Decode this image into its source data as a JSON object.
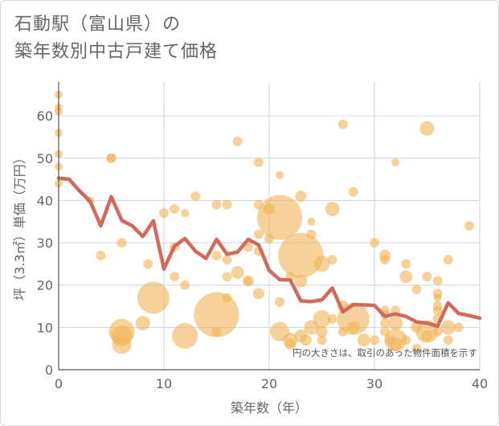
{
  "title": {
    "line1": "石動駅（富山県）の",
    "line2": "築年数別中古戸建て価格"
  },
  "chart_data": {
    "type": "scatter+line",
    "xlabel": "築年数（年）",
    "ylabel": "坪（3.3㎡）単価（万円）",
    "xlim": [
      0,
      40
    ],
    "ylim": [
      0,
      68
    ],
    "xticks": [
      0,
      10,
      20,
      30,
      40
    ],
    "yticks": [
      0,
      10,
      20,
      30,
      40,
      50,
      60
    ],
    "annotation": "円の大きさは、取引のあった物件面積を示す",
    "colors": {
      "bubble": "#f0b55a",
      "line": "#d2695a",
      "grid": "#c9d6e3",
      "plot_bg": "#ffffff"
    },
    "bubbles": [
      {
        "x": 0,
        "y": 65,
        "s": 5
      },
      {
        "x": 0,
        "y": 62,
        "s": 5
      },
      {
        "x": 0,
        "y": 61,
        "s": 5
      },
      {
        "x": 0,
        "y": 56,
        "s": 5
      },
      {
        "x": 0,
        "y": 51,
        "s": 5
      },
      {
        "x": 0,
        "y": 48,
        "s": 5
      },
      {
        "x": 0,
        "y": 44,
        "s": 5
      },
      {
        "x": 3,
        "y": 40,
        "s": 5
      },
      {
        "x": 4,
        "y": 27,
        "s": 6
      },
      {
        "x": 5,
        "y": 50,
        "s": 6
      },
      {
        "x": 5,
        "y": 50,
        "s": 6
      },
      {
        "x": 6,
        "y": 30,
        "s": 6
      },
      {
        "x": 6,
        "y": 9,
        "s": 16
      },
      {
        "x": 6,
        "y": 8,
        "s": 13
      },
      {
        "x": 6,
        "y": 6,
        "s": 12
      },
      {
        "x": 8,
        "y": 11,
        "s": 9
      },
      {
        "x": 8.5,
        "y": 25,
        "s": 6
      },
      {
        "x": 9,
        "y": 17,
        "s": 20
      },
      {
        "x": 10,
        "y": 37,
        "s": 6
      },
      {
        "x": 11,
        "y": 38,
        "s": 6
      },
      {
        "x": 11,
        "y": 22,
        "s": 6
      },
      {
        "x": 11,
        "y": 29,
        "s": 6
      },
      {
        "x": 12,
        "y": 37,
        "s": 5
      },
      {
        "x": 12,
        "y": 20,
        "s": 6
      },
      {
        "x": 12,
        "y": 8,
        "s": 16
      },
      {
        "x": 13,
        "y": 41,
        "s": 6
      },
      {
        "x": 15,
        "y": 39,
        "s": 6
      },
      {
        "x": 15,
        "y": 27,
        "s": 6
      },
      {
        "x": 15,
        "y": 9,
        "s": 6
      },
      {
        "x": 15,
        "y": 13,
        "s": 28
      },
      {
        "x": 16,
        "y": 39,
        "s": 6
      },
      {
        "x": 16,
        "y": 26,
        "s": 6
      },
      {
        "x": 16,
        "y": 17,
        "s": 6
      },
      {
        "x": 16,
        "y": 22,
        "s": 6
      },
      {
        "x": 17,
        "y": 54,
        "s": 6
      },
      {
        "x": 17,
        "y": 23,
        "s": 8
      },
      {
        "x": 18,
        "y": 21,
        "s": 7
      },
      {
        "x": 18,
        "y": 29,
        "s": 6
      },
      {
        "x": 18,
        "y": 21,
        "s": 5
      },
      {
        "x": 19,
        "y": 49,
        "s": 6
      },
      {
        "x": 19,
        "y": 39,
        "s": 6
      },
      {
        "x": 19,
        "y": 32,
        "s": 6
      },
      {
        "x": 19,
        "y": 28,
        "s": 6
      },
      {
        "x": 19,
        "y": 18,
        "s": 7
      },
      {
        "x": 20,
        "y": 38,
        "s": 7
      },
      {
        "x": 20,
        "y": 31,
        "s": 6
      },
      {
        "x": 21,
        "y": 46,
        "s": 5
      },
      {
        "x": 21,
        "y": 36,
        "s": 28
      },
      {
        "x": 21,
        "y": 16,
        "s": 6
      },
      {
        "x": 21,
        "y": 9,
        "s": 12
      },
      {
        "x": 22,
        "y": 22,
        "s": 6
      },
      {
        "x": 22,
        "y": 7,
        "s": 9
      },
      {
        "x": 22,
        "y": 6,
        "s": 7
      },
      {
        "x": 23,
        "y": 41,
        "s": 7
      },
      {
        "x": 23,
        "y": 27,
        "s": 28
      },
      {
        "x": 23,
        "y": 21,
        "s": 8
      },
      {
        "x": 23,
        "y": 8,
        "s": 8
      },
      {
        "x": 23.5,
        "y": 7,
        "s": 7
      },
      {
        "x": 24,
        "y": 35,
        "s": 5
      },
      {
        "x": 24,
        "y": 32,
        "s": 6
      },
      {
        "x": 24,
        "y": 10,
        "s": 9
      },
      {
        "x": 25,
        "y": 25,
        "s": 10
      },
      {
        "x": 25,
        "y": 12,
        "s": 11
      },
      {
        "x": 25,
        "y": 9,
        "s": 7
      },
      {
        "x": 25,
        "y": 7,
        "s": 6
      },
      {
        "x": 26,
        "y": 38,
        "s": 9
      },
      {
        "x": 26,
        "y": 26,
        "s": 6
      },
      {
        "x": 26,
        "y": 12,
        "s": 6
      },
      {
        "x": 27,
        "y": 58,
        "s": 6
      },
      {
        "x": 27,
        "y": 15,
        "s": 7
      },
      {
        "x": 27,
        "y": 9,
        "s": 6
      },
      {
        "x": 28,
        "y": 42,
        "s": 6
      },
      {
        "x": 28,
        "y": 12,
        "s": 20
      },
      {
        "x": 28,
        "y": 10,
        "s": 8
      },
      {
        "x": 29,
        "y": 7,
        "s": 8
      },
      {
        "x": 30,
        "y": 30,
        "s": 6
      },
      {
        "x": 30,
        "y": 7,
        "s": 6
      },
      {
        "x": 31,
        "y": 27,
        "s": 7
      },
      {
        "x": 31,
        "y": 26,
        "s": 6
      },
      {
        "x": 31,
        "y": 14,
        "s": 6
      },
      {
        "x": 31,
        "y": 13,
        "s": 6
      },
      {
        "x": 31,
        "y": 11,
        "s": 6
      },
      {
        "x": 31,
        "y": 9,
        "s": 6
      },
      {
        "x": 31.5,
        "y": 7,
        "s": 6
      },
      {
        "x": 32,
        "y": 49,
        "s": 5
      },
      {
        "x": 32,
        "y": 14,
        "s": 6
      },
      {
        "x": 32,
        "y": 11,
        "s": 9
      },
      {
        "x": 32,
        "y": 7,
        "s": 14
      },
      {
        "x": 32,
        "y": 6,
        "s": 8
      },
      {
        "x": 33,
        "y": 25,
        "s": 6
      },
      {
        "x": 33,
        "y": 22,
        "s": 8
      },
      {
        "x": 33,
        "y": 7,
        "s": 6
      },
      {
        "x": 34,
        "y": 19,
        "s": 6
      },
      {
        "x": 34,
        "y": 10,
        "s": 7
      },
      {
        "x": 34,
        "y": 5,
        "s": 6
      },
      {
        "x": 35,
        "y": 57,
        "s": 9
      },
      {
        "x": 35,
        "y": 22,
        "s": 6
      },
      {
        "x": 35,
        "y": 9,
        "s": 14
      },
      {
        "x": 35,
        "y": 8,
        "s": 7
      },
      {
        "x": 36,
        "y": 21,
        "s": 6
      },
      {
        "x": 36,
        "y": 18,
        "s": 6
      },
      {
        "x": 36,
        "y": 17,
        "s": 5
      },
      {
        "x": 36,
        "y": 15,
        "s": 6
      },
      {
        "x": 36,
        "y": 14,
        "s": 6
      },
      {
        "x": 36,
        "y": 12,
        "s": 6
      },
      {
        "x": 36,
        "y": 9,
        "s": 6
      },
      {
        "x": 37,
        "y": 26,
        "s": 6
      },
      {
        "x": 37,
        "y": 10,
        "s": 9
      },
      {
        "x": 37,
        "y": 7,
        "s": 6
      },
      {
        "x": 38,
        "y": 10,
        "s": 6
      },
      {
        "x": 39,
        "y": 34,
        "s": 6
      }
    ],
    "line": {
      "x": [
        0,
        1,
        2,
        3,
        4,
        5,
        6,
        7,
        8,
        9,
        10,
        11,
        12,
        13,
        14,
        15,
        16,
        17,
        18,
        19,
        20,
        21,
        22,
        23,
        24,
        25,
        26,
        27,
        28,
        29,
        30,
        31,
        32,
        33,
        34,
        35,
        36,
        37,
        38,
        39,
        40
      ],
      "y": [
        45.3,
        45,
        42.2,
        39.8,
        34,
        40.9,
        35.3,
        34,
        31.5,
        35.2,
        23.8,
        29.2,
        31,
        28,
        26.3,
        30.8,
        27.3,
        27.8,
        30.8,
        29.5,
        23.5,
        21.3,
        21.2,
        16.3,
        16.1,
        16.5,
        19.3,
        13.7,
        15.4,
        15.3,
        15.2,
        12.6,
        13.2,
        12.6,
        11.3,
        11,
        10.3,
        15.8,
        13.3,
        12.8,
        12.2
      ]
    }
  }
}
